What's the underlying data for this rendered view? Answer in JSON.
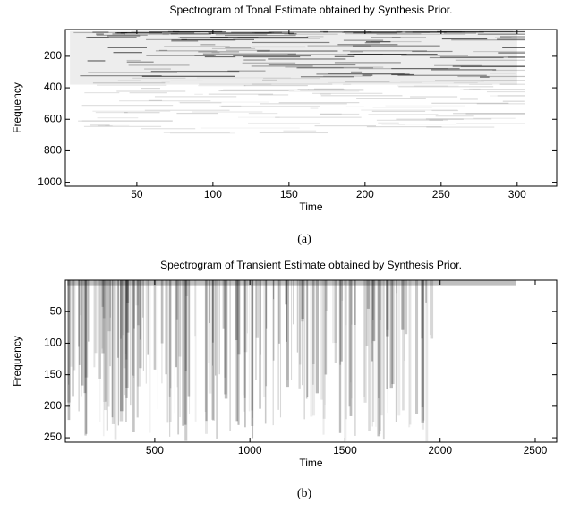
{
  "chart_data": [
    {
      "type": "spectrogram",
      "title": "Spectrogram of Tonal Estimate obtained by Synthesis Prior.",
      "x_label": "Time",
      "y_label": "Frequency",
      "caption": "(a)",
      "xlim": [
        3,
        326
      ],
      "xticks": [
        50,
        100,
        150,
        200,
        250,
        300
      ],
      "ylim": [
        30,
        1025
      ],
      "yticks": [
        200,
        400,
        600,
        800,
        1000
      ],
      "y_inverted": true
    },
    {
      "type": "spectrogram",
      "title": "Spectrogram of Transient Estimate obtained by Synthesis Prior.",
      "x_label": "Time",
      "y_label": "Frequency",
      "caption": "(b)",
      "xlim": [
        30,
        2613
      ],
      "xticks": [
        500,
        1000,
        1500,
        2000,
        2500
      ],
      "ylim": [
        0,
        257
      ],
      "yticks": [
        50,
        100,
        150,
        200,
        250
      ],
      "y_inverted": true
    }
  ]
}
